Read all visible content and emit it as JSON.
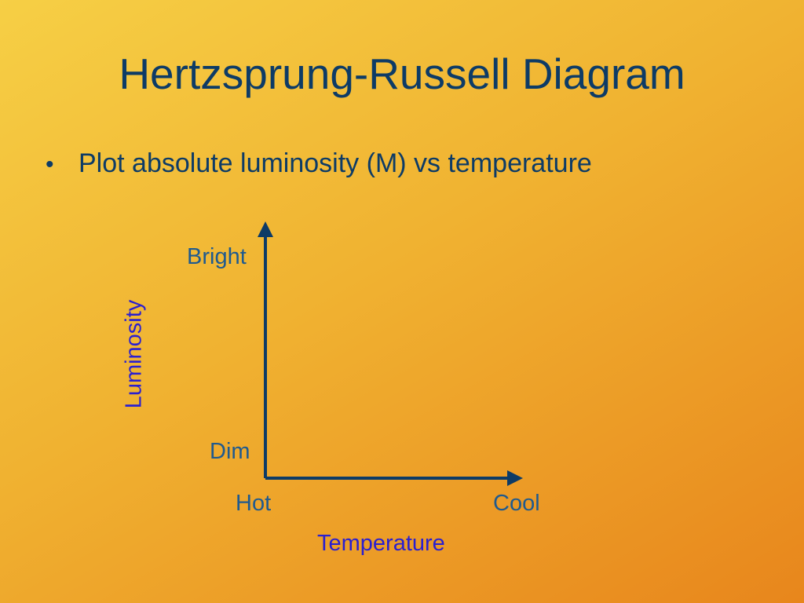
{
  "slide": {
    "title": "Hertzsprung-Russell Diagram",
    "bullets": [
      {
        "marker": "•",
        "text": "Plot absolute luminosity (M) vs temperature"
      }
    ]
  },
  "diagram": {
    "y_axis": {
      "title": "Luminosity",
      "top_label": "Bright",
      "bottom_label": "Dim"
    },
    "x_axis": {
      "title": "Temperature",
      "left_label": "Hot",
      "right_label": "Cool"
    }
  },
  "colors": {
    "background_start": "#f6cf45",
    "background_end": "#e8861c",
    "title_text": "#0d3b66",
    "axis_line": "#0d3b66",
    "tick_label": "#1f5a8f",
    "axis_title": "#2a1fd0"
  }
}
